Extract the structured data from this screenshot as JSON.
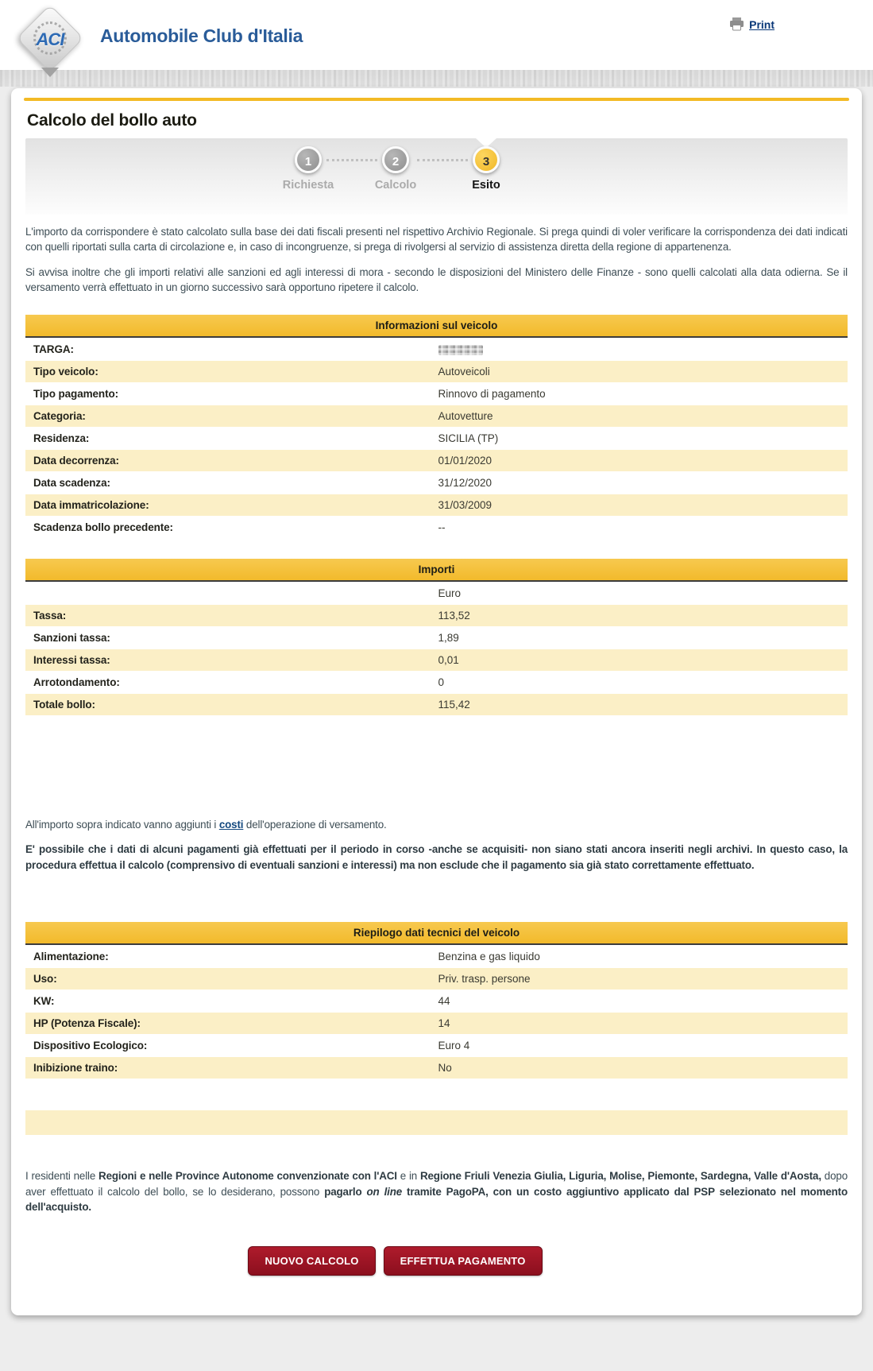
{
  "header": {
    "logo_acronym": "ACI",
    "logo_text": "Automobile Club d'Italia",
    "print_label": "Print"
  },
  "page": {
    "title": "Calcolo del bollo auto"
  },
  "stepper": {
    "steps": [
      {
        "number": "1",
        "label": "Richiesta",
        "active": false
      },
      {
        "number": "2",
        "label": "Calcolo",
        "active": false
      },
      {
        "number": "3",
        "label": "Esito",
        "active": true
      }
    ]
  },
  "intro_paragraphs": [
    "L'importo da corrispondere è stato calcolato sulla base dei dati fiscali presenti nel rispettivo Archivio Regionale. Si prega quindi di voler verificare la corrispondenza dei dati indicati con quelli riportati sulla carta di circolazione e, in caso di incongruenze, si prega di rivolgersi al servizio di assistenza diretta della regione di appartenenza.",
    "Si avvisa inoltre che gli importi relativi alle sanzioni ed agli interessi di mora - secondo le disposizioni del Ministero delle Finanze - sono quelli calcolati alla data odierna. Se il versamento verrà effettuato in un giorno successivo sarà opportuno ripetere il calcolo."
  ],
  "vehicle_info": {
    "title": "Informazioni sul veicolo",
    "rows": [
      {
        "label": "TARGA:",
        "value": "",
        "masked": true
      },
      {
        "label": "Tipo veicolo:",
        "value": "Autoveicoli"
      },
      {
        "label": "Tipo pagamento:",
        "value": "Rinnovo di pagamento"
      },
      {
        "label": "Categoria:",
        "value": "Autovetture"
      },
      {
        "label": "Residenza:",
        "value": "SICILIA (TP)"
      },
      {
        "label": "Data decorrenza:",
        "value": "01/01/2020"
      },
      {
        "label": "Data scadenza:",
        "value": "31/12/2020"
      },
      {
        "label": "Data immatricolazione:",
        "value": "31/03/2009"
      },
      {
        "label": "Scadenza bollo precedente:",
        "value": "--"
      }
    ]
  },
  "amounts": {
    "title": "Importi",
    "currency_label": "Euro",
    "rows": [
      {
        "label": "Tassa:",
        "value": "113,52"
      },
      {
        "label": "Sanzioni tassa:",
        "value": "1,89"
      },
      {
        "label": "Interessi tassa:",
        "value": "0,01"
      },
      {
        "label": "Arrotondamento:",
        "value": "0"
      },
      {
        "label": "Totale bollo:",
        "value": "115,42"
      }
    ]
  },
  "notes": {
    "costs_before": "All'importo sopra indicato vanno aggiunti i ",
    "costs_link": "costi",
    "costs_after": " dell'operazione di versamento.",
    "disclaimer": "E' possibile che i dati di alcuni pagamenti già effettuati per il periodo in corso -anche se acquisiti- non siano stati ancora inseriti negli archivi. In questo caso, la procedura effettua il calcolo (comprensivo di eventuali sanzioni e interessi) ma non esclude che il pagamento sia già stato correttamente effettuato."
  },
  "tech_summary": {
    "title": "Riepilogo dati tecnici del veicolo",
    "rows": [
      {
        "label": "Alimentazione:",
        "value": "Benzina e gas liquido"
      },
      {
        "label": "Uso:",
        "value": "Priv. trasp. persone"
      },
      {
        "label": "KW:",
        "value": "44"
      },
      {
        "label": "HP (Potenza Fiscale):",
        "value": "14"
      },
      {
        "label": "Dispositivo Ecologico:",
        "value": "Euro 4"
      },
      {
        "label": "Inibizione traino:",
        "value": "No"
      }
    ]
  },
  "footer_note": {
    "segments": [
      {
        "text": "I residenti nelle ",
        "bold": false,
        "italic": false
      },
      {
        "text": "Regioni e nelle Province Autonome convenzionate con l'ACI",
        "bold": true,
        "italic": false
      },
      {
        "text": " e in ",
        "bold": false,
        "italic": false
      },
      {
        "text": "Regione Friuli Venezia Giulia, Liguria, Molise, Piemonte, Sardegna, Valle d'Aosta,",
        "bold": true,
        "italic": false
      },
      {
        "text": " dopo aver effettuato il calcolo del bollo, se lo desiderano, possono ",
        "bold": false,
        "italic": false
      },
      {
        "text": "pagarlo ",
        "bold": true,
        "italic": false
      },
      {
        "text": "on line",
        "bold": true,
        "italic": true
      },
      {
        "text": " tramite PagoPA, con un costo aggiuntivo applicato dal PSP selezionato nel momento dell'acquisto.",
        "bold": true,
        "italic": false
      }
    ]
  },
  "buttons": [
    {
      "label": "NUOVO CALCOLO"
    },
    {
      "label": "EFFETTUA PAGAMENTO"
    }
  ],
  "colors": {
    "gold_header": "#F5C242",
    "gold_line": "#F3BA25",
    "pale_yellow_row": "#FBEFC6",
    "button_red": "#9E1424",
    "link_blue": "#15497F",
    "brand_blue": "#2A5C99",
    "step_active": "#F5C242",
    "step_inactive": "#9B9B9B",
    "body_text": "#3D4D55"
  }
}
